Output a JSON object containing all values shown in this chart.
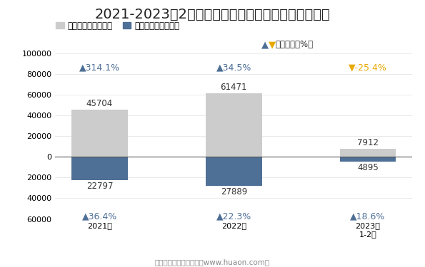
{
  "title": "2021-2023年2月珠澳跨境工业区珠海园区进、出口额",
  "categories": [
    "2021年",
    "2022年",
    "2023年\n1-2月"
  ],
  "export_values": [
    45704,
    61471,
    7912
  ],
  "import_values": [
    22797,
    27889,
    4895
  ],
  "export_color": "#cccccc",
  "import_color": "#4e6f96",
  "export_label": "出口总额（万美元）",
  "import_label": "进口总额（万美元）",
  "yoy_label": "同比增速（%）",
  "export_yoy": [
    314.1,
    34.5,
    -25.4
  ],
  "import_yoy": [
    36.4,
    22.3,
    18.6
  ],
  "ylim_min": -60000,
  "ylim_max": 100000,
  "yticks": [
    -60000,
    -40000,
    -20000,
    0,
    20000,
    40000,
    60000,
    80000,
    100000
  ],
  "export_yoy_color_up": "#4e6f96",
  "export_yoy_color_down": "#e8a800",
  "import_yoy_color": "#4e6f96",
  "background_color": "#ffffff",
  "title_fontsize": 14,
  "legend_fontsize": 8.5,
  "tick_fontsize": 8,
  "annotation_fontsize": 8.5,
  "yoy_fontsize": 9,
  "footer": "制图：华经产业研究院（www.huaon.com）",
  "bar_width": 0.42
}
